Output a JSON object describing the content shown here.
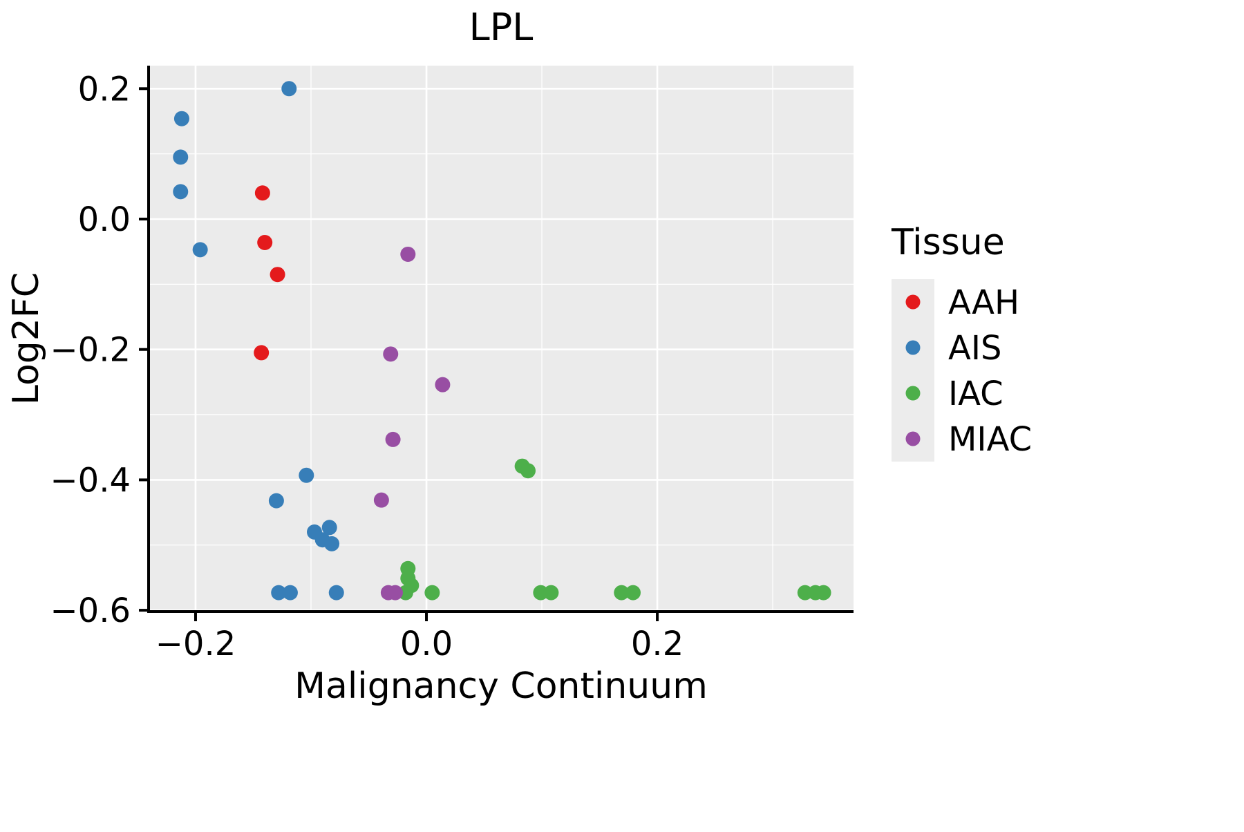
{
  "chart_data": {
    "type": "scatter",
    "title": "LPL",
    "xlabel": "Malignancy Continuum",
    "ylabel": "Log2FC",
    "legend_title": "Tissue",
    "legend_position": "right",
    "grid": true,
    "panel_bg": "#EBEBEB",
    "legend_key_bg": "#ECECEC",
    "grid_color": "#FFFFFF",
    "axis_color": "#000000",
    "xlim": [
      -0.2407,
      0.37
    ],
    "ylim": [
      -0.602,
      0.2353
    ],
    "x_ticks": [
      {
        "value": -0.2,
        "label": "−0.2"
      },
      {
        "value": 0.0,
        "label": "0.0"
      },
      {
        "value": 0.2,
        "label": "0.2"
      }
    ],
    "y_ticks": [
      {
        "value": 0.2,
        "label": "0.2"
      },
      {
        "value": 0.0,
        "label": "0.0"
      },
      {
        "value": -0.2,
        "label": "−0.2"
      },
      {
        "value": -0.4,
        "label": "−0.4"
      },
      {
        "value": -0.6,
        "label": "−0.6"
      }
    ],
    "x_minor_ticks": [
      -0.1,
      0.1,
      0.3
    ],
    "y_minor_ticks": [
      0.1,
      -0.1,
      -0.3,
      -0.5
    ],
    "point_radius": 11,
    "series": [
      {
        "name": "AAH",
        "color": "#E41A1C",
        "points": [
          [
            -0.142,
            0.04
          ],
          [
            -0.14,
            -0.036
          ],
          [
            -0.129,
            -0.085
          ],
          [
            -0.143,
            -0.205
          ]
        ]
      },
      {
        "name": "AIS",
        "color": "#377EB8",
        "points": [
          [
            -0.119,
            0.2
          ],
          [
            -0.212,
            0.154
          ],
          [
            -0.213,
            0.095
          ],
          [
            -0.213,
            0.042
          ],
          [
            -0.196,
            -0.047
          ],
          [
            -0.104,
            -0.393
          ],
          [
            -0.13,
            -0.432
          ],
          [
            -0.097,
            -0.48
          ],
          [
            -0.084,
            -0.473
          ],
          [
            -0.09,
            -0.492
          ],
          [
            -0.082,
            -0.498
          ],
          [
            -0.128,
            -0.573
          ],
          [
            -0.118,
            -0.573
          ],
          [
            -0.078,
            -0.573
          ]
        ]
      },
      {
        "name": "IAC",
        "color": "#4DAF4A",
        "points": [
          [
            0.083,
            -0.379
          ],
          [
            0.088,
            -0.386
          ],
          [
            -0.016,
            -0.536
          ],
          [
            -0.016,
            -0.551
          ],
          [
            -0.013,
            -0.562
          ],
          [
            -0.018,
            -0.573
          ],
          [
            0.005,
            -0.573
          ],
          [
            0.099,
            -0.573
          ],
          [
            0.108,
            -0.573
          ],
          [
            0.169,
            -0.573
          ],
          [
            0.179,
            -0.573
          ],
          [
            0.328,
            -0.573
          ],
          [
            0.337,
            -0.573
          ],
          [
            0.344,
            -0.573
          ]
        ]
      },
      {
        "name": "MIAC",
        "color": "#984EA3",
        "points": [
          [
            -0.016,
            -0.054
          ],
          [
            -0.031,
            -0.207
          ],
          [
            0.014,
            -0.254
          ],
          [
            -0.029,
            -0.338
          ],
          [
            -0.039,
            -0.431
          ],
          [
            -0.033,
            -0.573
          ],
          [
            -0.027,
            -0.573
          ]
        ]
      }
    ]
  }
}
